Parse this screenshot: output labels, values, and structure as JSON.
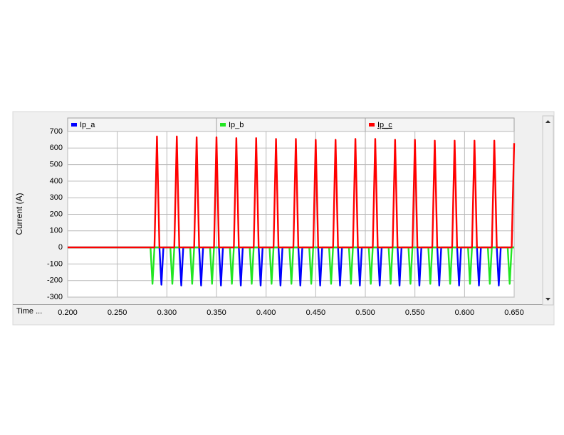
{
  "chart_data": {
    "type": "line",
    "y_label": "Current (A)",
    "x_label": "Time ...",
    "xlim": [
      0.2,
      0.65
    ],
    "xticks": [
      {
        "value": 0.2,
        "label": "0.200"
      },
      {
        "value": 0.25,
        "label": "0.250"
      },
      {
        "value": 0.3,
        "label": "0.300"
      },
      {
        "value": 0.35,
        "label": "0.350"
      },
      {
        "value": 0.4,
        "label": "0.400"
      },
      {
        "value": 0.45,
        "label": "0.450"
      },
      {
        "value": 0.5,
        "label": "0.500"
      },
      {
        "value": 0.55,
        "label": "0.550"
      },
      {
        "value": 0.6,
        "label": "0.600"
      },
      {
        "value": 0.65,
        "label": "0.650"
      }
    ],
    "ylim": [
      -300,
      700
    ],
    "yticks": [
      -300,
      -200,
      -100,
      0,
      100,
      200,
      300,
      400,
      500,
      600,
      700
    ],
    "grid": true,
    "legend": "top",
    "x": [
      0.2,
      0.2835,
      0.2855,
      0.2875,
      0.29,
      0.2925,
      0.2945,
      0.2965,
      0.3035,
      0.3055,
      0.3075,
      0.31,
      0.3125,
      0.3145,
      0.3165,
      0.3235,
      0.3255,
      0.3275,
      0.33,
      0.3325,
      0.3345,
      0.3365,
      0.3435,
      0.3455,
      0.3475,
      0.35,
      0.3525,
      0.3545,
      0.3565,
      0.3635,
      0.3655,
      0.3675,
      0.37,
      0.3725,
      0.3745,
      0.3765,
      0.3835,
      0.3855,
      0.3875,
      0.39,
      0.3925,
      0.3945,
      0.3965,
      0.4035,
      0.4055,
      0.4075,
      0.41,
      0.4125,
      0.4145,
      0.4165,
      0.4235,
      0.4255,
      0.4275,
      0.43,
      0.4325,
      0.4345,
      0.4365,
      0.4435,
      0.4455,
      0.4475,
      0.45,
      0.4525,
      0.4545,
      0.4565,
      0.4635,
      0.4655,
      0.4675,
      0.47,
      0.4725,
      0.4745,
      0.4765,
      0.4835,
      0.4855,
      0.4875,
      0.49,
      0.4925,
      0.4945,
      0.4965,
      0.5035,
      0.5055,
      0.5075,
      0.51,
      0.5125,
      0.5145,
      0.5165,
      0.5235,
      0.5255,
      0.5275,
      0.53,
      0.5325,
      0.5345,
      0.5365,
      0.5435,
      0.5455,
      0.5475,
      0.55,
      0.5525,
      0.5545,
      0.5565,
      0.5635,
      0.5655,
      0.5675,
      0.57,
      0.5725,
      0.5745,
      0.5765,
      0.5835,
      0.5855,
      0.5875,
      0.59,
      0.5925,
      0.5945,
      0.5965,
      0.6035,
      0.6055,
      0.6075,
      0.61,
      0.6125,
      0.6145,
      0.6165,
      0.6235,
      0.6255,
      0.6275,
      0.63,
      0.6325,
      0.6345,
      0.6365,
      0.6435,
      0.6455,
      0.6475,
      0.65
    ],
    "series": [
      {
        "name": "Ip_a",
        "color": "#0000ff",
        "values": [
          0,
          0,
          0,
          0,
          0,
          0,
          -225,
          0,
          0,
          0,
          0,
          0,
          0,
          -230,
          0,
          0,
          0,
          0,
          0,
          0,
          -230,
          0,
          0,
          0,
          0,
          0,
          0,
          -230,
          0,
          0,
          0,
          0,
          0,
          0,
          -230,
          0,
          0,
          0,
          0,
          0,
          0,
          -230,
          0,
          0,
          0,
          0,
          0,
          0,
          -230,
          0,
          0,
          0,
          0,
          0,
          0,
          -230,
          0,
          0,
          0,
          0,
          0,
          0,
          -230,
          0,
          0,
          0,
          0,
          0,
          0,
          -230,
          0,
          0,
          0,
          0,
          0,
          0,
          -230,
          0,
          0,
          0,
          0,
          0,
          0,
          -230,
          0,
          0,
          0,
          0,
          0,
          0,
          -230,
          0,
          0,
          0,
          0,
          0,
          0,
          -230,
          0,
          0,
          0,
          0,
          0,
          0,
          -230,
          0,
          0,
          0,
          0,
          0,
          0,
          -230,
          0,
          0,
          0,
          0,
          0,
          0,
          -230,
          0,
          0,
          0,
          0,
          0,
          0,
          -230,
          0,
          0,
          0,
          0,
          0
        ]
      },
      {
        "name": "Ip_b",
        "color": "#22e622",
        "values": [
          0,
          0,
          -220,
          0,
          0,
          0,
          0,
          0,
          0,
          -220,
          0,
          0,
          0,
          0,
          0,
          0,
          -220,
          0,
          0,
          0,
          0,
          0,
          0,
          -220,
          0,
          0,
          0,
          0,
          0,
          0,
          -220,
          0,
          0,
          0,
          0,
          0,
          0,
          -220,
          0,
          0,
          0,
          0,
          0,
          0,
          -220,
          0,
          0,
          0,
          0,
          0,
          0,
          -220,
          0,
          0,
          0,
          0,
          0,
          0,
          -220,
          0,
          0,
          0,
          0,
          0,
          0,
          -220,
          0,
          0,
          0,
          0,
          0,
          0,
          -220,
          0,
          0,
          0,
          0,
          0,
          0,
          -220,
          0,
          0,
          0,
          0,
          0,
          0,
          -220,
          0,
          0,
          0,
          0,
          0,
          0,
          -220,
          0,
          0,
          0,
          0,
          0,
          0,
          -220,
          0,
          0,
          0,
          0,
          0,
          0,
          -220,
          0,
          0,
          0,
          0,
          0,
          0,
          -220,
          0,
          0,
          0,
          0,
          0,
          0,
          -220,
          0,
          0,
          0,
          0,
          0,
          0,
          -220,
          0,
          0
        ]
      },
      {
        "name": "Ip_c",
        "color": "#ff0000",
        "values": [
          0,
          0,
          0,
          0,
          670,
          0,
          0,
          0,
          0,
          0,
          0,
          670,
          0,
          0,
          0,
          0,
          0,
          0,
          665,
          0,
          0,
          0,
          0,
          0,
          0,
          665,
          0,
          0,
          0,
          0,
          0,
          0,
          660,
          0,
          0,
          0,
          0,
          0,
          0,
          660,
          0,
          0,
          0,
          0,
          0,
          0,
          655,
          0,
          0,
          0,
          0,
          0,
          0,
          655,
          0,
          0,
          0,
          0,
          0,
          0,
          650,
          0,
          0,
          0,
          0,
          0,
          0,
          650,
          0,
          0,
          0,
          0,
          0,
          0,
          655,
          0,
          0,
          0,
          0,
          0,
          0,
          655,
          0,
          0,
          0,
          0,
          0,
          0,
          650,
          0,
          0,
          0,
          0,
          0,
          0,
          650,
          0,
          0,
          0,
          0,
          0,
          0,
          645,
          0,
          0,
          0,
          0,
          0,
          0,
          645,
          0,
          0,
          0,
          0,
          0,
          0,
          645,
          0,
          0,
          0,
          0,
          0,
          0,
          645,
          0,
          0,
          0,
          0,
          0,
          0,
          630
        ]
      }
    ]
  }
}
